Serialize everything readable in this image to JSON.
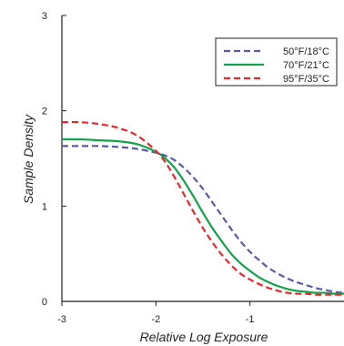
{
  "chart_data": {
    "type": "line",
    "xlabel": "Relative Log Exposure",
    "ylabel": "Sample Density",
    "xlim": [
      -3,
      0
    ],
    "ylim": [
      0,
      3
    ],
    "x_ticks": [
      -3,
      -2,
      -1
    ],
    "x_tick_labels": [
      "-3",
      "-2",
      "-1"
    ],
    "y_ticks": [
      0,
      1,
      2,
      3
    ],
    "y_tick_labels": [
      "0",
      "1",
      "2",
      "3"
    ],
    "grid": false,
    "legend_position": "top-right",
    "series": [
      {
        "name": "50°F/18°C",
        "color": "#5b5ba3",
        "style": "dashed",
        "x": [
          -3.0,
          -2.8,
          -2.6,
          -2.4,
          -2.2,
          -2.0,
          -1.9,
          -1.8,
          -1.7,
          -1.6,
          -1.5,
          -1.4,
          -1.3,
          -1.2,
          -1.1,
          -1.0,
          -0.9,
          -0.8,
          -0.7,
          -0.6,
          -0.5,
          -0.4,
          -0.3,
          -0.2,
          -0.1,
          0.0
        ],
        "y": [
          1.63,
          1.63,
          1.63,
          1.62,
          1.6,
          1.56,
          1.53,
          1.48,
          1.4,
          1.3,
          1.18,
          1.04,
          0.9,
          0.76,
          0.63,
          0.52,
          0.43,
          0.35,
          0.29,
          0.24,
          0.2,
          0.17,
          0.14,
          0.12,
          0.1,
          0.09
        ]
      },
      {
        "name": "70°F/21°C",
        "color": "#12a34a",
        "style": "solid",
        "x": [
          -3.0,
          -2.8,
          -2.6,
          -2.4,
          -2.2,
          -2.0,
          -1.9,
          -1.8,
          -1.7,
          -1.6,
          -1.5,
          -1.4,
          -1.3,
          -1.2,
          -1.1,
          -1.0,
          -0.9,
          -0.8,
          -0.7,
          -0.6,
          -0.5,
          -0.4,
          -0.3,
          -0.2,
          -0.1,
          0.0
        ],
        "y": [
          1.7,
          1.7,
          1.69,
          1.68,
          1.65,
          1.57,
          1.5,
          1.4,
          1.26,
          1.1,
          0.93,
          0.77,
          0.63,
          0.5,
          0.4,
          0.32,
          0.25,
          0.2,
          0.16,
          0.13,
          0.11,
          0.1,
          0.09,
          0.09,
          0.08,
          0.08
        ]
      },
      {
        "name": "95°F/35°C",
        "color": "#e8262b",
        "style": "dashed",
        "x": [
          -3.0,
          -2.8,
          -2.6,
          -2.4,
          -2.2,
          -2.0,
          -1.9,
          -1.8,
          -1.7,
          -1.6,
          -1.5,
          -1.4,
          -1.3,
          -1.2,
          -1.1,
          -1.0,
          -0.9,
          -0.8,
          -0.7,
          -0.6,
          -0.5,
          -0.4,
          -0.3,
          -0.2,
          -0.1,
          0.0
        ],
        "y": [
          1.88,
          1.88,
          1.86,
          1.82,
          1.74,
          1.58,
          1.46,
          1.3,
          1.12,
          0.94,
          0.77,
          0.62,
          0.49,
          0.38,
          0.29,
          0.23,
          0.18,
          0.14,
          0.11,
          0.09,
          0.08,
          0.08,
          0.07,
          0.07,
          0.07,
          0.07
        ]
      }
    ]
  }
}
